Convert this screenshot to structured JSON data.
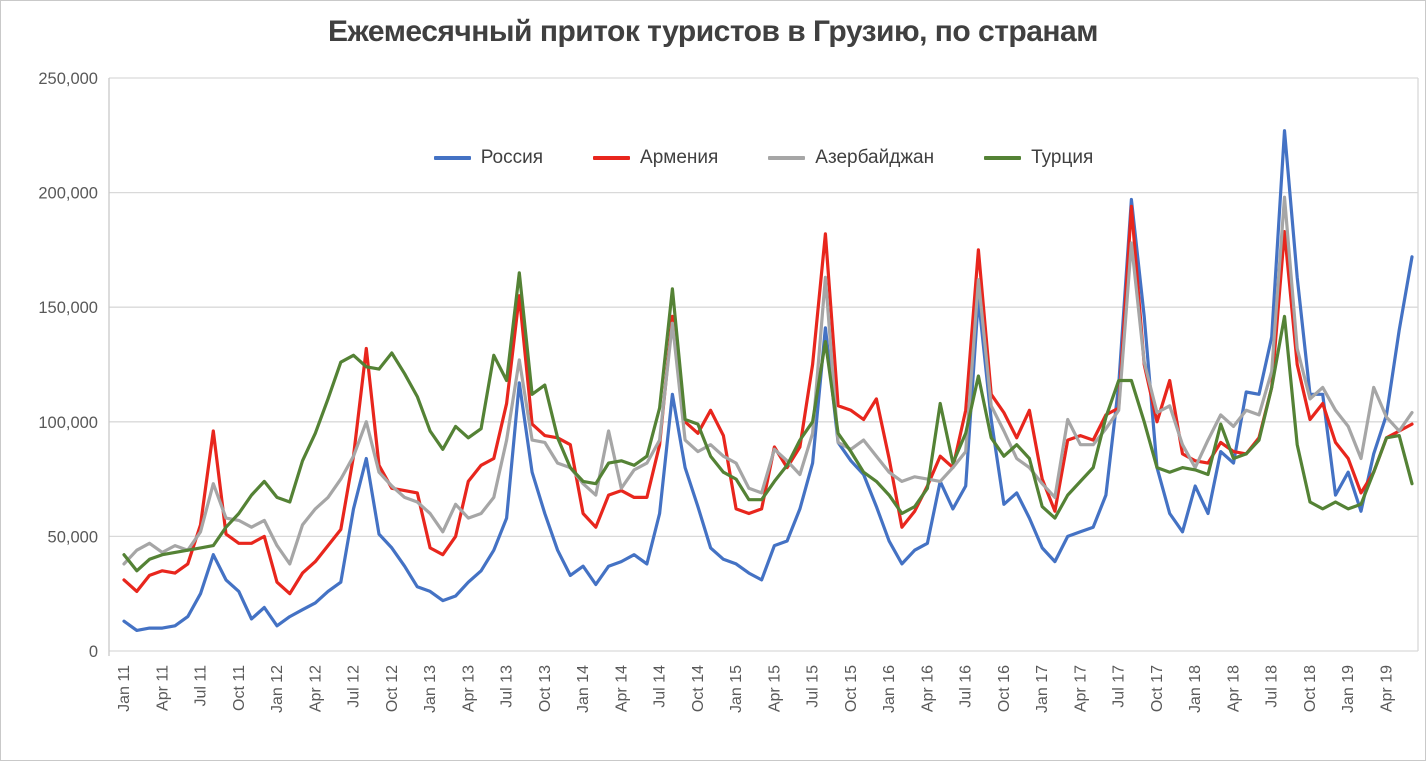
{
  "title": "Ежемесячный приток туристов в Грузию, по странам",
  "legend": [
    {
      "label": "Россия",
      "color": "#4472C4"
    },
    {
      "label": "Армения",
      "color": "#E8261D"
    },
    {
      "label": "Азербайджан",
      "color": "#A6A6A6"
    },
    {
      "label": "Турция",
      "color": "#548235"
    }
  ],
  "colors": {
    "grid": "#D9D9D9",
    "axis_line": "#C9C9C9",
    "tick_text": "#595959",
    "title_text": "#404040"
  },
  "chart_data": {
    "type": "line",
    "title": "Ежемесячный приток туристов в Грузию, по странам",
    "xlabel": "",
    "ylabel": "",
    "grid": true,
    "legend_position": "top-center",
    "y_min": 0,
    "y_max": 250000,
    "y_tick_step": 50000,
    "y_tick_labels": [
      "0",
      "50,000",
      "100,000",
      "150,000",
      "200,000",
      "250,000"
    ],
    "x_unit": "month",
    "x_range_text": "Jan 2011 - Jun 2019",
    "x_tick_every": 3,
    "x_tick_labels": [
      "Jan 11",
      "Apr 11",
      "Jul 11",
      "Oct 11",
      "Jan 12",
      "Apr 12",
      "Jul 12",
      "Oct 12",
      "Jan 13",
      "Apr 13",
      "Jul 13",
      "Oct 13",
      "Jan 14",
      "Apr 14",
      "Jul 14",
      "Oct 14",
      "Jan 15",
      "Apr 15",
      "Jul 15",
      "Oct 15",
      "Jan 16",
      "Apr 16",
      "Jul 16",
      "Oct 16",
      "Jan 17",
      "Apr 17",
      "Jul 17",
      "Oct 17",
      "Jan 18",
      "Apr 18",
      "Jul 18",
      "Oct 18",
      "Jan 19",
      "Apr 19"
    ],
    "series": [
      {
        "name": "Россия",
        "color": "#4472C4",
        "values": [
          13000,
          9000,
          10000,
          10000,
          11000,
          15000,
          25000,
          42000,
          31000,
          26000,
          14000,
          19000,
          11000,
          15000,
          18000,
          21000,
          26000,
          30000,
          62000,
          84000,
          51000,
          45000,
          37000,
          28000,
          26000,
          22000,
          24000,
          30000,
          35000,
          44000,
          58000,
          117000,
          78000,
          60000,
          44000,
          33000,
          37000,
          29000,
          37000,
          39000,
          42000,
          38000,
          60000,
          112000,
          80000,
          63000,
          45000,
          40000,
          38000,
          34000,
          31000,
          46000,
          48000,
          62000,
          82000,
          141000,
          91000,
          83000,
          77000,
          63000,
          48000,
          38000,
          44000,
          47000,
          74000,
          62000,
          72000,
          154000,
          101000,
          64000,
          69000,
          58000,
          45000,
          39000,
          50000,
          52000,
          54000,
          68000,
          116000,
          197000,
          146000,
          80000,
          60000,
          52000,
          72000,
          60000,
          87000,
          82000,
          113000,
          112000,
          137000,
          227000,
          163000,
          112000,
          112000,
          68000,
          78000,
          61000,
          86000,
          103000,
          140000,
          172000
        ]
      },
      {
        "name": "Армения",
        "color": "#E8261D",
        "values": [
          31000,
          26000,
          33000,
          35000,
          34000,
          38000,
          55000,
          96000,
          51000,
          47000,
          47000,
          50000,
          30000,
          25000,
          34000,
          39000,
          46000,
          53000,
          85000,
          132000,
          81000,
          71000,
          70000,
          69000,
          45000,
          42000,
          50000,
          74000,
          81000,
          84000,
          108000,
          155000,
          99000,
          94000,
          93000,
          90000,
          60000,
          54000,
          68000,
          70000,
          67000,
          67000,
          90000,
          146000,
          100000,
          95000,
          105000,
          94000,
          62000,
          60000,
          62000,
          89000,
          80000,
          89000,
          125000,
          182000,
          107000,
          105000,
          101000,
          110000,
          84000,
          54000,
          61000,
          72000,
          85000,
          80000,
          105000,
          175000,
          112000,
          104000,
          93000,
          105000,
          75000,
          61000,
          92000,
          94000,
          92000,
          103000,
          106000,
          194000,
          125000,
          100000,
          118000,
          86000,
          83000,
          82000,
          91000,
          87000,
          86000,
          93000,
          115000,
          183000,
          125000,
          101000,
          108000,
          91000,
          84000,
          69000,
          78000,
          93000,
          96000,
          99000
        ]
      },
      {
        "name": "Азербайджан",
        "color": "#A6A6A6",
        "values": [
          38000,
          44000,
          47000,
          43000,
          46000,
          44000,
          52000,
          73000,
          58000,
          57000,
          54000,
          57000,
          46000,
          38000,
          55000,
          62000,
          67000,
          75000,
          85000,
          100000,
          78000,
          72000,
          67000,
          65000,
          60000,
          52000,
          64000,
          58000,
          60000,
          67000,
          92000,
          127000,
          92000,
          91000,
          82000,
          80000,
          73000,
          68000,
          96000,
          71000,
          79000,
          82000,
          92000,
          143000,
          92000,
          87000,
          90000,
          85000,
          82000,
          71000,
          69000,
          88000,
          83000,
          77000,
          95000,
          163000,
          91000,
          88000,
          92000,
          85000,
          78000,
          74000,
          76000,
          75000,
          74000,
          80000,
          87000,
          162000,
          107000,
          96000,
          84000,
          80000,
          73000,
          67000,
          101000,
          90000,
          90000,
          97000,
          105000,
          178000,
          126000,
          104000,
          107000,
          90000,
          80000,
          92000,
          103000,
          98000,
          105000,
          103000,
          122000,
          198000,
          132000,
          110000,
          115000,
          105000,
          98000,
          84000,
          115000,
          102000,
          96000,
          104000
        ]
      },
      {
        "name": "Турция",
        "color": "#548235",
        "values": [
          42000,
          35000,
          40000,
          42000,
          43000,
          44000,
          45000,
          46000,
          54000,
          60000,
          68000,
          74000,
          67000,
          65000,
          83000,
          95000,
          110000,
          126000,
          129000,
          124000,
          123000,
          130000,
          121000,
          111000,
          96000,
          88000,
          98000,
          93000,
          97000,
          129000,
          118000,
          165000,
          112000,
          116000,
          93000,
          80000,
          74000,
          73000,
          82000,
          83000,
          81000,
          85000,
          106000,
          158000,
          101000,
          99000,
          85000,
          78000,
          75000,
          66000,
          66000,
          74000,
          81000,
          92000,
          100000,
          135000,
          95000,
          87000,
          78000,
          74000,
          68000,
          60000,
          63000,
          71000,
          108000,
          82000,
          95000,
          120000,
          93000,
          85000,
          90000,
          84000,
          63000,
          58000,
          68000,
          74000,
          80000,
          102000,
          118000,
          118000,
          100000,
          80000,
          78000,
          80000,
          79000,
          77000,
          99000,
          84000,
          86000,
          92000,
          115000,
          146000,
          90000,
          65000,
          62000,
          65000,
          62000,
          64000,
          78000,
          93000,
          94000,
          73000
        ]
      }
    ]
  }
}
